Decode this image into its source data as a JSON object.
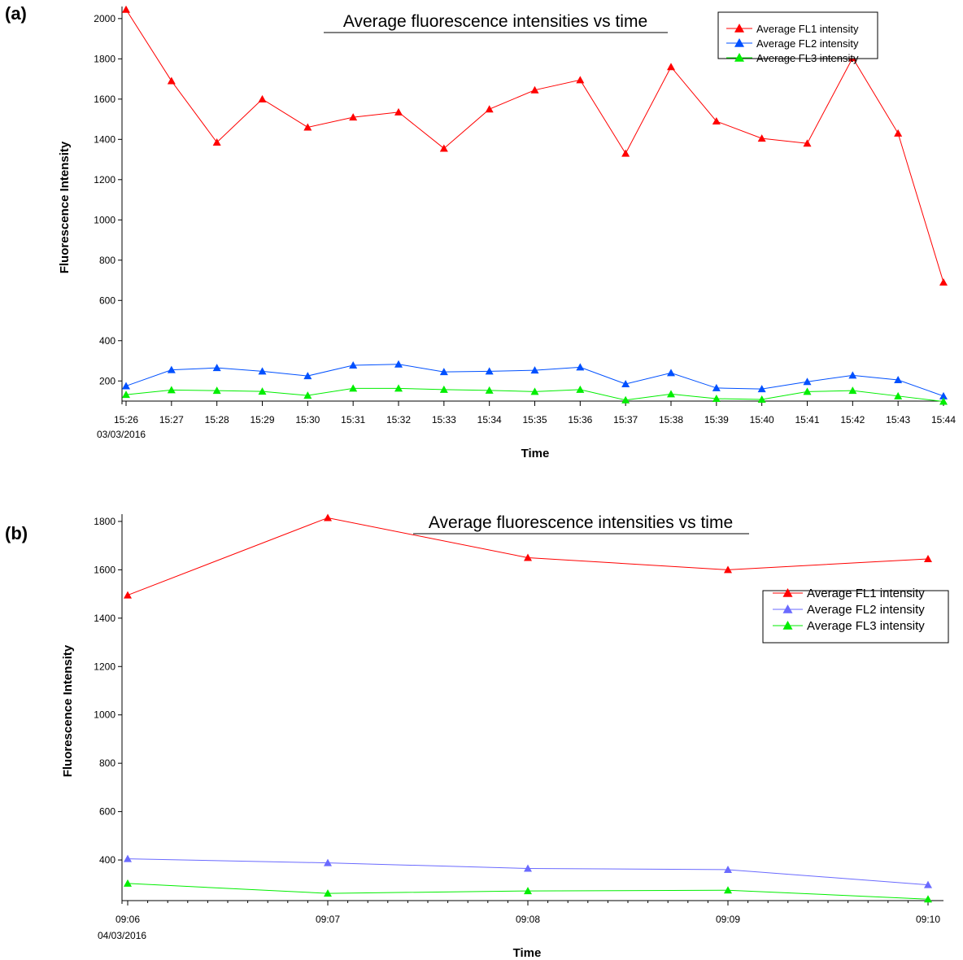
{
  "chart_data": [
    {
      "panel_label": "(a)",
      "type": "line",
      "title": "Average fluorescence intensities vs time",
      "xlabel": "Time",
      "ylabel": "Fluorescence Intensity",
      "date_label": "03/03/2016",
      "categories": [
        "15:26",
        "15:27",
        "15:28",
        "15:29",
        "15:30",
        "15:31",
        "15:32",
        "15:33",
        "15:34",
        "15:35",
        "15:36",
        "15:37",
        "15:38",
        "15:39",
        "15:40",
        "15:41",
        "15:42",
        "15:43",
        "15:44"
      ],
      "y_ticks": [
        200,
        400,
        600,
        800,
        1000,
        1200,
        1400,
        1600,
        1800,
        2000
      ],
      "ylim": [
        100,
        2060
      ],
      "legend_position": "top-right",
      "grid": false,
      "series": [
        {
          "name": "Average FL1 intensity",
          "color": "#ff0000",
          "values": [
            2045,
            1690,
            1385,
            1600,
            1460,
            1510,
            1535,
            1355,
            1550,
            1645,
            1695,
            1330,
            1760,
            1490,
            1405,
            1380,
            1805,
            1430,
            690
          ]
        },
        {
          "name": "Average FL2 intensity",
          "color": "#0050ff",
          "values": [
            175,
            255,
            265,
            248,
            225,
            278,
            283,
            245,
            248,
            253,
            268,
            185,
            240,
            165,
            160,
            196,
            228,
            205,
            125
          ]
        },
        {
          "name": "Average FL3 intensity",
          "color": "#00ee00",
          "values": [
            132,
            155,
            152,
            148,
            128,
            163,
            163,
            157,
            153,
            147,
            157,
            105,
            135,
            112,
            108,
            147,
            152,
            125,
            98
          ]
        }
      ]
    },
    {
      "panel_label": "(b)",
      "type": "line",
      "title": "Average fluorescence intensities vs time",
      "xlabel": "Time",
      "ylabel": "Fluorescence Intensity",
      "date_label": "04/03/2016",
      "categories": [
        "09:06",
        "09:07",
        "09:08",
        "09:09",
        "09:10"
      ],
      "y_ticks": [
        400,
        600,
        800,
        1000,
        1200,
        1400,
        1600,
        1800
      ],
      "ylim": [
        232,
        1830
      ],
      "legend_position": "top-right",
      "grid": false,
      "series": [
        {
          "name": "Average FL1 intensity",
          "color": "#ff0000",
          "values": [
            1495,
            1815,
            1650,
            1600,
            1645
          ]
        },
        {
          "name": "Average FL2 intensity",
          "color": "#6a6aff",
          "values": [
            405,
            388,
            365,
            360,
            297
          ]
        },
        {
          "name": "Average FL3 intensity",
          "color": "#00ee00",
          "values": [
            303,
            262,
            272,
            275,
            238
          ]
        }
      ]
    }
  ]
}
